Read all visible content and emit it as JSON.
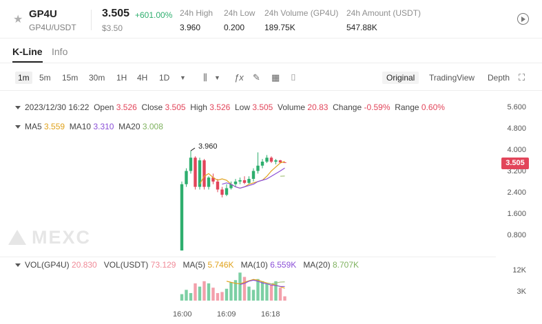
{
  "header": {
    "symbol": "GP4U",
    "pair": "GP4U/USDT",
    "price": "3.505",
    "change": "+601.00%",
    "price_usd": "$3.50",
    "stats": [
      {
        "label": "24h High",
        "value": "3.960"
      },
      {
        "label": "24h Low",
        "value": "0.200"
      },
      {
        "label": "24h Volume (GP4U)",
        "value": "189.75K"
      },
      {
        "label": "24h Amount (USDT)",
        "value": "547.88K"
      }
    ]
  },
  "tabs": [
    "K-Line",
    "Info"
  ],
  "toolbar": {
    "intervals": [
      "1m",
      "5m",
      "15m",
      "30m",
      "1H",
      "4H",
      "1D"
    ],
    "views": [
      "Original",
      "TradingView",
      "Depth"
    ]
  },
  "ohlc": {
    "datetime": "2023/12/30 16:22",
    "open_label": "Open",
    "open": "3.526",
    "close_label": "Close",
    "close": "3.505",
    "high_label": "High",
    "high": "3.526",
    "low_label": "Low",
    "low": "3.505",
    "volume_label": "Volume",
    "volume": "20.83",
    "change_label": "Change",
    "change": "-0.59%",
    "range_label": "Range",
    "range": "0.60%"
  },
  "ma": {
    "ma5_label": "MA5",
    "ma5": "3.559",
    "ma10_label": "MA10",
    "ma10": "3.310",
    "ma20_label": "MA20",
    "ma20": "3.008"
  },
  "vol": {
    "gp4u_label": "VOL(GP4U)",
    "gp4u": "20.830",
    "usdt_label": "VOL(USDT)",
    "usdt": "73.129",
    "ma5_label": "MA(5)",
    "ma5": "5.746K",
    "ma10_label": "MA(10)",
    "ma10": "6.559K",
    "ma20_label": "MA(20)",
    "ma20": "8.707K"
  },
  "price_axis": [
    "5.600",
    "4.800",
    "4.000",
    "3.200",
    "2.400",
    "1.600",
    "0.800"
  ],
  "vol_axis": [
    "12K",
    "3K"
  ],
  "current_price_tag": "3.505",
  "high_marker": "3.960",
  "time_axis": [
    "16:00",
    "16:09",
    "16:18"
  ],
  "watermark": "MEXC",
  "colors": {
    "up": "#2eae6e",
    "down": "#e2455a",
    "ma5": "#e0a21b",
    "ma10": "#8b4fd8",
    "ma20": "#a7c27c"
  },
  "chart_data": {
    "type": "candlestick",
    "interval": "1m",
    "candles": [
      {
        "o": 0.2,
        "h": 2.8,
        "l": 0.2,
        "c": 2.7
      },
      {
        "o": 2.7,
        "h": 3.3,
        "l": 2.6,
        "c": 3.2
      },
      {
        "o": 3.2,
        "h": 3.96,
        "l": 3.1,
        "c": 3.7
      },
      {
        "o": 3.7,
        "h": 3.75,
        "l": 2.5,
        "c": 2.6
      },
      {
        "o": 2.6,
        "h": 3.7,
        "l": 2.5,
        "c": 3.6
      },
      {
        "o": 3.6,
        "h": 3.65,
        "l": 2.5,
        "c": 2.6
      },
      {
        "o": 2.6,
        "h": 3.0,
        "l": 2.5,
        "c": 2.95
      },
      {
        "o": 2.95,
        "h": 3.1,
        "l": 2.7,
        "c": 2.8
      },
      {
        "o": 2.8,
        "h": 2.9,
        "l": 2.4,
        "c": 2.5
      },
      {
        "o": 2.5,
        "h": 2.6,
        "l": 2.2,
        "c": 2.3
      },
      {
        "o": 2.3,
        "h": 2.7,
        "l": 2.25,
        "c": 2.55
      },
      {
        "o": 2.55,
        "h": 2.8,
        "l": 2.5,
        "c": 2.7
      },
      {
        "o": 2.7,
        "h": 2.9,
        "l": 2.6,
        "c": 2.8
      },
      {
        "o": 2.8,
        "h": 2.95,
        "l": 2.7,
        "c": 2.85
      },
      {
        "o": 2.85,
        "h": 3.0,
        "l": 2.7,
        "c": 2.75
      },
      {
        "o": 2.75,
        "h": 3.0,
        "l": 2.7,
        "c": 2.9
      },
      {
        "o": 2.9,
        "h": 3.3,
        "l": 2.8,
        "c": 3.2
      },
      {
        "o": 3.2,
        "h": 3.9,
        "l": 3.1,
        "c": 3.4
      },
      {
        "o": 3.4,
        "h": 3.65,
        "l": 3.3,
        "c": 3.55
      },
      {
        "o": 3.55,
        "h": 3.8,
        "l": 3.5,
        "c": 3.7
      },
      {
        "o": 3.7,
        "h": 3.75,
        "l": 3.5,
        "c": 3.55
      },
      {
        "o": 3.55,
        "h": 3.65,
        "l": 3.45,
        "c": 3.6
      },
      {
        "o": 3.6,
        "h": 3.62,
        "l": 3.5,
        "c": 3.52
      },
      {
        "o": 3.526,
        "h": 3.526,
        "l": 3.505,
        "c": 3.505
      }
    ],
    "ma5_line": [
      2.7,
      3.0,
      3.1,
      2.95,
      2.85,
      2.9,
      2.85,
      2.7,
      2.6,
      2.55,
      2.6,
      2.7,
      2.75,
      2.8,
      2.85,
      3.0,
      3.2,
      3.35,
      3.5,
      3.56
    ],
    "ma10_line": [
      2.7,
      2.75,
      2.7,
      2.6,
      2.55,
      2.6,
      2.65,
      2.7,
      2.8,
      2.85,
      2.9,
      3.0,
      3.1,
      3.2,
      3.31
    ],
    "ma20_line": [
      3.0,
      3.008
    ],
    "volumes": [
      3.0,
      5.0,
      3.5,
      8.0,
      6.5,
      9.0,
      8.0,
      6.0,
      3.5,
      4.0,
      5.5,
      8.5,
      9.5,
      13.0,
      11.0,
      6.5,
      5.0,
      10.0,
      9.0,
      8.0,
      7.5,
      9.0,
      6.0,
      2.0
    ],
    "vol_ma5": [
      9.0,
      8.5,
      8.0,
      7.8,
      8.5,
      9.2,
      9.8,
      9.5,
      8.8,
      8.2,
      7.8,
      7.2,
      6.5,
      5.746
    ],
    "vol_ma10": [
      7.5,
      8.0,
      9.0,
      9.5,
      9.0,
      8.2,
      7.8,
      7.2,
      7.0,
      6.6,
      6.559
    ],
    "vol_ma20": [
      8.0,
      7.8,
      8.2,
      8.6,
      8.707
    ],
    "ylim": [
      0.0,
      6.0
    ],
    "vol_ylim": [
      0,
      15
    ]
  }
}
